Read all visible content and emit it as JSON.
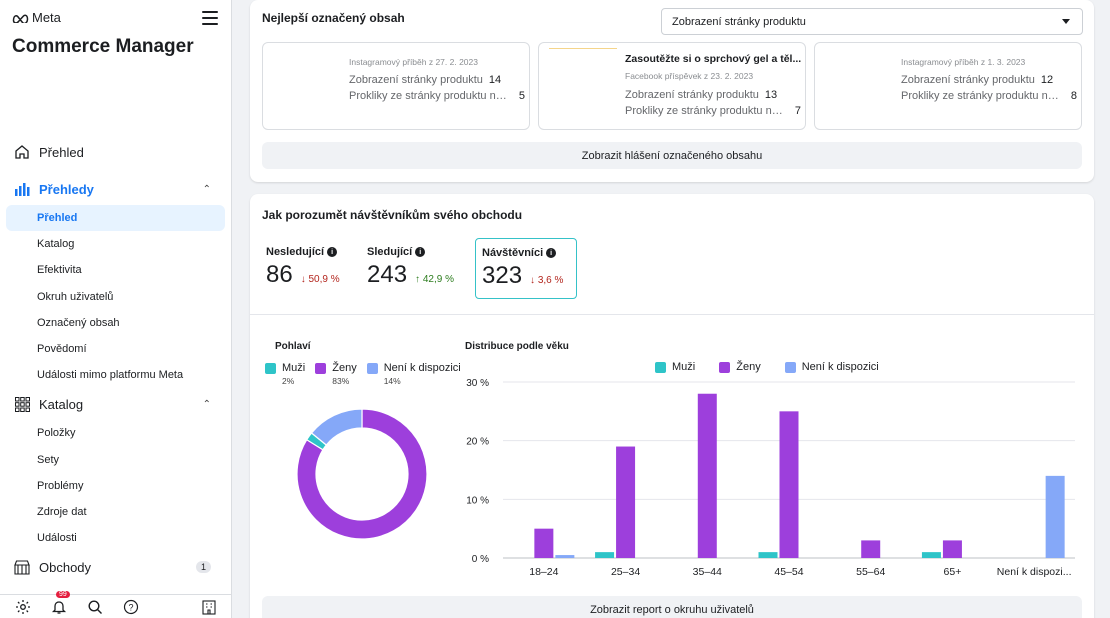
{
  "sidebar": {
    "brand": "Meta",
    "app_title": "Commerce Manager",
    "sections": [
      {
        "label": "Přehled",
        "icon": "home-icon"
      },
      {
        "label": "Přehledy",
        "icon": "bar-chart-icon",
        "items": [
          "Přehled",
          "Katalog",
          "Efektivita",
          "Okruh uživatelů",
          "Označený obsah",
          "Povědomí",
          "Události mimo platformu Meta"
        ]
      },
      {
        "label": "Katalog",
        "icon": "grid-icon",
        "items": [
          "Položky",
          "Sety",
          "Problémy",
          "Zdroje dat",
          "Události"
        ]
      },
      {
        "label": "Obchody",
        "icon": "storefront-icon",
        "badge": "1"
      }
    ],
    "notification_count": "99"
  },
  "tagged": {
    "title": "Nejlepší označený obsah",
    "select_value": "Zobrazení stránky produktu",
    "cards": [
      {
        "title": "",
        "date": "Instagramový příběh z 27. 2. 2023",
        "m1_label": "Zobrazení stránky produktu",
        "m1_value": "14",
        "m2_label": "Prokliky ze stránky produktu na ...",
        "m2_value": "5"
      },
      {
        "title": "Zasoutěžte si o sprchový gel a těl...",
        "date": "Facebook příspěvek z 23. 2. 2023",
        "m1_label": "Zobrazení stránky produktu",
        "m1_value": "13",
        "m2_label": "Prokliky ze stránky produktu na ...",
        "m2_value": "7"
      },
      {
        "title": "",
        "date": "Instagramový příběh z 1. 3. 2023",
        "m1_label": "Zobrazení stránky produktu",
        "m1_value": "12",
        "m2_label": "Prokliky ze stránky produktu na ...",
        "m2_value": "8"
      }
    ],
    "report_button": "Zobrazit hlášení označeného obsahu"
  },
  "visitors": {
    "title": "Jak porozumět návštěvníkům svého obchodu",
    "stats": [
      {
        "label": "Nesledující",
        "value": "86",
        "change": "↓ 50,9 %",
        "direction": "down"
      },
      {
        "label": "Sledující",
        "value": "243",
        "change": "↑ 42,9 %",
        "direction": "up"
      },
      {
        "label": "Návštěvníci",
        "value": "323",
        "change": "↓ 3,6 %",
        "direction": "down"
      }
    ],
    "report_button": "Zobrazit report o okruhu uživatelů"
  },
  "colors": {
    "muzi": "#2ec4c8",
    "zeny": "#9d3fdc",
    "nd": "#85a8f8",
    "accent": "#1877f2"
  },
  "chart_data": [
    {
      "type": "pie",
      "title": "Pohlaví",
      "labels": [
        "Muži",
        "Ženy",
        "Není k dispozici"
      ],
      "values": [
        2,
        83,
        14
      ],
      "value_labels": [
        "2%",
        "83%",
        "14%"
      ],
      "legend": "top"
    },
    {
      "type": "bar",
      "title": "Distribuce podle věku",
      "categories": [
        "18–24",
        "25–34",
        "35–44",
        "45–54",
        "55–64",
        "65+",
        "Není k dispozi..."
      ],
      "series": [
        {
          "name": "Muži",
          "values": [
            0,
            1,
            0,
            1,
            0,
            1,
            0
          ]
        },
        {
          "name": "Ženy",
          "values": [
            5,
            19,
            28,
            25,
            3,
            3,
            0
          ]
        },
        {
          "name": "Není k dispozici",
          "values": [
            0.5,
            0,
            0,
            0,
            0,
            0,
            14
          ]
        }
      ],
      "yticks": [
        "0 %",
        "10 %",
        "20 %",
        "30 %"
      ],
      "ylim": [
        0,
        30
      ],
      "grid": true,
      "legend": "top"
    }
  ]
}
